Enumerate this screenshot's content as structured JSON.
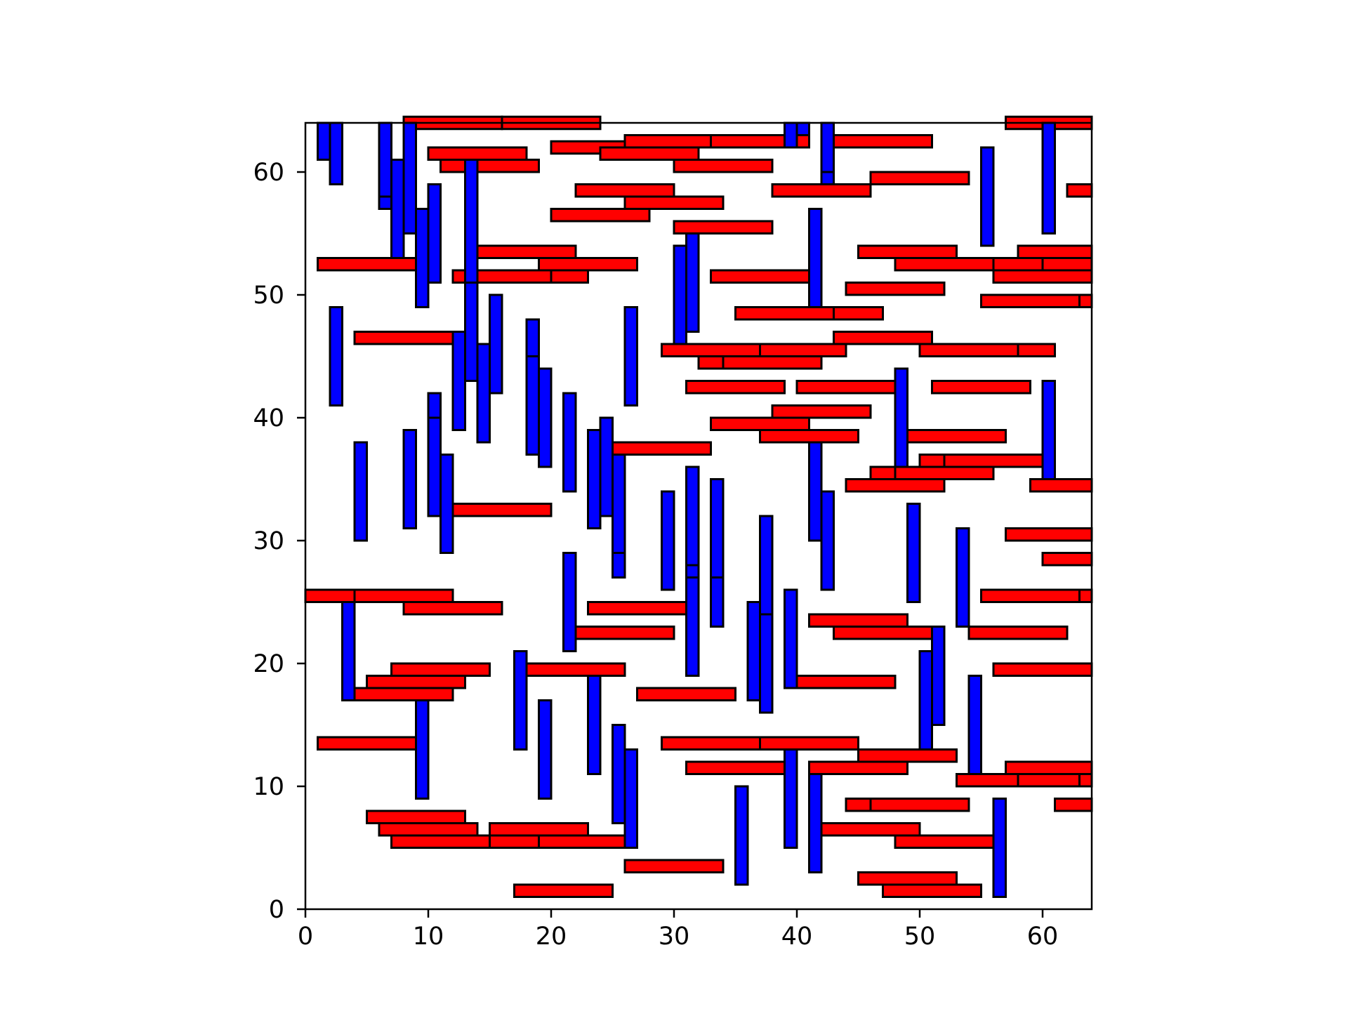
{
  "chart_data": {
    "type": "bar",
    "xlim": [
      0,
      64
    ],
    "ylim": [
      0,
      64
    ],
    "grid": false,
    "legend": "none",
    "xticks": [
      "0",
      "10",
      "20",
      "30",
      "40",
      "50",
      "60"
    ],
    "yticks": [
      "0",
      "10",
      "20",
      "30",
      "40",
      "50",
      "60"
    ],
    "colors": {
      "horizontal": "#ff0000",
      "vertical": "#0000ff",
      "edge": "#000000"
    },
    "horizontal": [
      [
        8,
        64,
        8
      ],
      [
        16,
        64,
        8
      ],
      [
        57,
        64,
        7
      ],
      [
        20,
        62,
        8
      ],
      [
        24,
        61.5,
        8
      ],
      [
        26,
        62.5,
        8
      ],
      [
        33,
        62.5,
        8
      ],
      [
        43,
        62.5,
        8
      ],
      [
        10,
        61.5,
        8
      ],
      [
        11,
        60.5,
        8
      ],
      [
        30,
        60.5,
        8
      ],
      [
        46,
        59.5,
        8
      ],
      [
        22,
        58.5,
        8
      ],
      [
        38,
        58.5,
        8
      ],
      [
        62,
        58.5,
        2
      ],
      [
        26,
        57.5,
        8
      ],
      [
        20,
        56.5,
        8
      ],
      [
        30,
        55.5,
        8
      ],
      [
        14,
        53.5,
        8
      ],
      [
        45,
        53.5,
        8
      ],
      [
        58,
        53.5,
        6
      ],
      [
        1,
        52.5,
        8
      ],
      [
        19,
        52.5,
        8
      ],
      [
        48,
        52.5,
        8
      ],
      [
        56,
        52.5,
        8
      ],
      [
        60,
        52.5,
        4
      ],
      [
        12,
        51.5,
        8
      ],
      [
        20,
        51.5,
        3
      ],
      [
        33,
        51.5,
        8
      ],
      [
        56,
        51.5,
        8
      ],
      [
        44,
        50.5,
        8
      ],
      [
        55,
        49.5,
        8
      ],
      [
        63,
        49.5,
        1
      ],
      [
        35,
        48.5,
        8
      ],
      [
        43,
        48.5,
        4
      ],
      [
        4,
        46.5,
        8
      ],
      [
        43,
        46.5,
        8
      ],
      [
        29,
        45.5,
        8
      ],
      [
        37,
        45.5,
        7
      ],
      [
        50,
        45.5,
        8
      ],
      [
        58,
        45.5,
        3
      ],
      [
        32,
        44.5,
        2
      ],
      [
        34,
        44.5,
        8
      ],
      [
        31,
        42.5,
        8
      ],
      [
        40,
        42.5,
        8
      ],
      [
        51,
        42.5,
        8
      ],
      [
        38,
        40.5,
        8
      ],
      [
        33,
        39.5,
        8
      ],
      [
        49,
        38.5,
        8
      ],
      [
        37,
        38.5,
        8
      ],
      [
        25,
        37.5,
        8
      ],
      [
        50,
        36.5,
        2
      ],
      [
        52,
        36.5,
        8
      ],
      [
        46,
        35.5,
        2
      ],
      [
        48,
        35.5,
        8
      ],
      [
        44,
        34.5,
        8
      ],
      [
        59,
        34.5,
        5
      ],
      [
        12,
        32.5,
        8
      ],
      [
        57,
        30.5,
        7
      ],
      [
        60,
        28.5,
        4
      ],
      [
        0,
        25.5,
        4
      ],
      [
        4,
        25.5,
        8
      ],
      [
        55,
        25.5,
        8
      ],
      [
        63,
        25.5,
        1
      ],
      [
        8,
        24.5,
        8
      ],
      [
        23,
        24.5,
        8
      ],
      [
        41,
        23.5,
        8
      ],
      [
        22,
        22.5,
        8
      ],
      [
        43,
        22.5,
        8
      ],
      [
        54,
        22.5,
        8
      ],
      [
        7,
        19.5,
        8
      ],
      [
        18,
        19.5,
        8
      ],
      [
        56,
        19.5,
        8
      ],
      [
        5,
        18.5,
        8
      ],
      [
        40,
        18.5,
        8
      ],
      [
        4,
        17.5,
        8
      ],
      [
        27,
        17.5,
        8
      ],
      [
        1,
        13.5,
        8
      ],
      [
        29,
        13.5,
        8
      ],
      [
        37,
        13.5,
        8
      ],
      [
        45,
        12.5,
        8
      ],
      [
        31,
        11.5,
        8
      ],
      [
        41,
        11.5,
        8
      ],
      [
        57,
        11.5,
        7
      ],
      [
        53,
        10.5,
        5
      ],
      [
        58,
        10.5,
        5
      ],
      [
        63,
        10.5,
        1
      ],
      [
        44,
        8.5,
        2
      ],
      [
        46,
        8.5,
        8
      ],
      [
        61,
        8.5,
        3
      ],
      [
        5,
        7.5,
        8
      ],
      [
        6,
        6.5,
        8
      ],
      [
        15,
        6.5,
        8
      ],
      [
        42,
        6.5,
        8
      ],
      [
        7,
        5.5,
        8
      ],
      [
        15,
        5.5,
        4
      ],
      [
        19,
        5.5,
        7
      ],
      [
        48,
        5.5,
        8
      ],
      [
        26,
        3.5,
        8
      ],
      [
        45,
        2.5,
        8
      ],
      [
        17,
        1.5,
        8
      ],
      [
        47,
        1.5,
        8
      ]
    ],
    "vertical": [
      [
        1.5,
        61,
        3
      ],
      [
        2.5,
        59,
        5
      ],
      [
        6.5,
        57,
        7
      ],
      [
        6.5,
        58,
        6
      ],
      [
        7.5,
        53,
        8
      ],
      [
        8.5,
        55,
        9
      ],
      [
        9.5,
        49,
        8
      ],
      [
        10.5,
        51,
        8
      ],
      [
        13.5,
        51,
        10
      ],
      [
        39.5,
        62,
        2
      ],
      [
        40.5,
        63,
        1
      ],
      [
        42.5,
        59,
        5
      ],
      [
        42.5,
        60,
        4
      ],
      [
        55.5,
        54,
        8
      ],
      [
        60.5,
        55,
        9
      ],
      [
        13.5,
        43,
        8
      ],
      [
        2.5,
        41,
        8
      ],
      [
        12.5,
        39,
        8
      ],
      [
        14.5,
        38,
        8
      ],
      [
        15.5,
        42,
        8
      ],
      [
        18.5,
        37,
        8
      ],
      [
        18.5,
        45,
        3
      ],
      [
        19.5,
        36,
        8
      ],
      [
        21.5,
        34,
        8
      ],
      [
        26.5,
        41,
        8
      ],
      [
        30.5,
        46,
        8
      ],
      [
        31.5,
        47,
        8
      ],
      [
        41.5,
        49,
        8
      ],
      [
        4.5,
        30,
        8
      ],
      [
        8.5,
        31,
        8
      ],
      [
        10.5,
        32,
        8
      ],
      [
        10.5,
        40,
        2
      ],
      [
        11.5,
        29,
        8
      ],
      [
        23.5,
        31,
        8
      ],
      [
        24.5,
        32,
        8
      ],
      [
        25.5,
        27,
        8
      ],
      [
        25.5,
        29,
        8
      ],
      [
        29.5,
        26,
        8
      ],
      [
        31.5,
        27,
        8
      ],
      [
        31.5,
        28,
        8
      ],
      [
        33.5,
        27,
        8
      ],
      [
        41.5,
        30,
        8
      ],
      [
        42.5,
        26,
        8
      ],
      [
        48.5,
        36,
        8
      ],
      [
        49.5,
        25,
        8
      ],
      [
        53.5,
        23,
        8
      ],
      [
        60.5,
        35,
        8
      ],
      [
        3.5,
        17,
        8
      ],
      [
        9.5,
        9,
        8
      ],
      [
        17.5,
        13,
        8
      ],
      [
        19.5,
        9,
        8
      ],
      [
        21.5,
        21,
        8
      ],
      [
        23.5,
        11,
        8
      ],
      [
        25.5,
        7,
        8
      ],
      [
        26.5,
        5,
        8
      ],
      [
        31.5,
        19,
        8
      ],
      [
        33.5,
        23,
        4
      ],
      [
        35.5,
        2,
        8
      ],
      [
        36.5,
        17,
        8
      ],
      [
        37.5,
        16,
        8
      ],
      [
        37.5,
        24,
        8
      ],
      [
        39.5,
        5,
        8
      ],
      [
        39.5,
        18,
        8
      ],
      [
        41.5,
        3,
        8
      ],
      [
        50.5,
        13,
        8
      ],
      [
        51.5,
        15,
        8
      ],
      [
        54.5,
        11,
        8
      ],
      [
        56.5,
        1,
        8
      ]
    ]
  }
}
